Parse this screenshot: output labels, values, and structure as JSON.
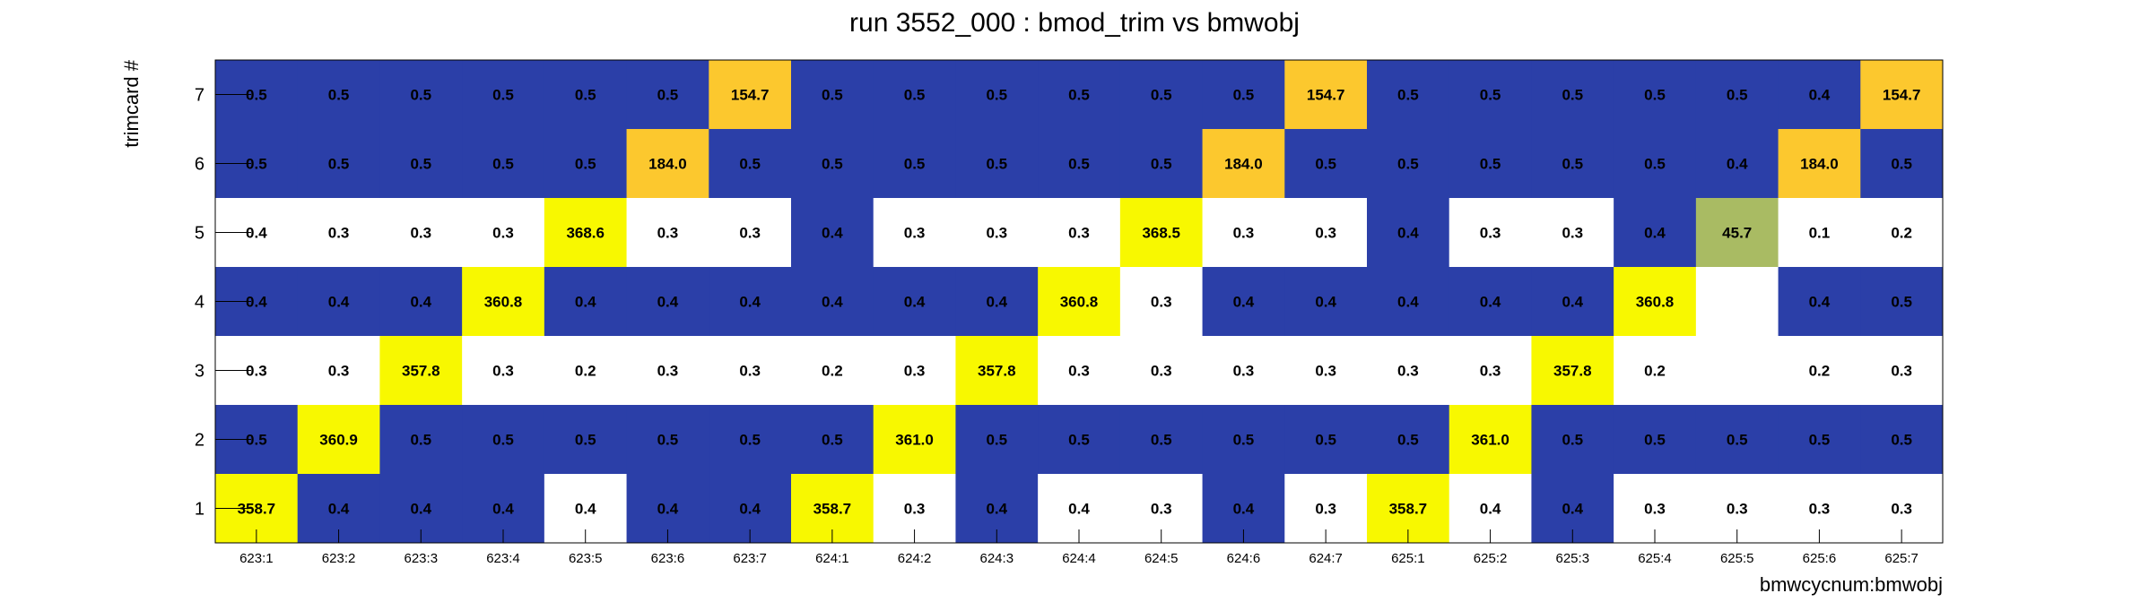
{
  "chart_data": {
    "type": "heatmap",
    "title": "run 3552_000 : bmod_trim vs bmwobj",
    "xlabel": "bmwcycnum:bmwobj",
    "ylabel": "trimcard #",
    "x_categories": [
      "623:1",
      "623:2",
      "623:3",
      "623:4",
      "623:5",
      "623:6",
      "623:7",
      "624:1",
      "624:2",
      "624:3",
      "624:4",
      "624:5",
      "624:6",
      "624:7",
      "625:1",
      "625:2",
      "625:3",
      "625:4",
      "625:5",
      "625:6",
      "625:7"
    ],
    "y_categories": [
      "1",
      "2",
      "3",
      "4",
      "5",
      "6",
      "7"
    ],
    "rows": [
      {
        "y": "7",
        "values": [
          0.5,
          0.5,
          0.5,
          0.5,
          0.5,
          0.5,
          154.7,
          0.5,
          0.5,
          0.5,
          0.5,
          0.5,
          0.5,
          154.7,
          0.5,
          0.5,
          0.5,
          0.5,
          0.5,
          0.4,
          154.7
        ],
        "labels": [
          "0.5",
          "0.5",
          "0.5",
          "0.5",
          "0.5",
          "0.5",
          "154.7",
          "0.5",
          "0.5",
          "0.5",
          "0.5",
          "0.5",
          "0.5",
          "154.7",
          "0.5",
          "0.5",
          "0.5",
          "0.5",
          "0.5",
          "0.4",
          "154.7"
        ]
      },
      {
        "y": "6",
        "values": [
          0.5,
          0.5,
          0.5,
          0.5,
          0.5,
          184.0,
          0.5,
          0.5,
          0.5,
          0.5,
          0.5,
          0.5,
          184.0,
          0.5,
          0.5,
          0.5,
          0.5,
          0.5,
          0.4,
          184.0,
          0.5
        ],
        "labels": [
          "0.5",
          "0.5",
          "0.5",
          "0.5",
          "0.5",
          "184.0",
          "0.5",
          "0.5",
          "0.5",
          "0.5",
          "0.5",
          "0.5",
          "184.0",
          "0.5",
          "0.5",
          "0.5",
          "0.5",
          "0.5",
          "0.4",
          "184.0",
          "0.5"
        ]
      },
      {
        "y": "5",
        "values": [
          0.4,
          0.3,
          0.3,
          0.3,
          368.6,
          0.3,
          0.3,
          0.4,
          0.3,
          0.3,
          0.3,
          368.5,
          0.3,
          0.3,
          0.4,
          0.3,
          0.3,
          0.4,
          45.7,
          0.1,
          0.2
        ],
        "labels": [
          "0.4",
          "0.3",
          "0.3",
          "0.3",
          "368.6",
          "0.3",
          "0.3",
          "0.4",
          "0.3",
          "0.3",
          "0.3",
          "368.5",
          "0.3",
          "0.3",
          "0.4",
          "0.3",
          "0.3",
          "0.4",
          "45.7",
          "0.1",
          "0.2"
        ]
      },
      {
        "y": "4",
        "values": [
          0.4,
          0.4,
          0.4,
          360.8,
          0.4,
          0.4,
          0.4,
          0.4,
          0.4,
          0.4,
          360.8,
          0.3,
          0.4,
          0.4,
          0.4,
          0.4,
          0.4,
          360.8,
          null,
          0.4,
          0.5
        ],
        "labels": [
          "0.4",
          "0.4",
          "0.4",
          "360.8",
          "0.4",
          "0.4",
          "0.4",
          "0.4",
          "0.4",
          "0.4",
          "360.8",
          "0.3",
          "0.4",
          "0.4",
          "0.4",
          "0.4",
          "0.4",
          "360.8",
          "",
          "0.4",
          "0.5"
        ]
      },
      {
        "y": "3",
        "values": [
          0.3,
          0.3,
          357.8,
          0.3,
          0.2,
          0.3,
          0.3,
          0.2,
          0.3,
          357.8,
          0.3,
          0.3,
          0.3,
          0.3,
          0.3,
          0.3,
          357.8,
          0.2,
          null,
          0.2,
          0.3
        ],
        "labels": [
          "0.3",
          "0.3",
          "357.8",
          "0.3",
          "0.2",
          "0.3",
          "0.3",
          "0.2",
          "0.3",
          "357.8",
          "0.3",
          "0.3",
          "0.3",
          "0.3",
          "0.3",
          "0.3",
          "357.8",
          "0.2",
          "",
          "0.2",
          "0.3"
        ]
      },
      {
        "y": "2",
        "values": [
          0.5,
          360.9,
          0.5,
          0.5,
          0.5,
          0.5,
          0.5,
          0.5,
          361.0,
          0.5,
          0.5,
          0.5,
          0.5,
          0.5,
          0.5,
          361.0,
          0.5,
          0.5,
          0.5,
          0.5,
          0.5
        ],
        "labels": [
          "0.5",
          "360.9",
          "0.5",
          "0.5",
          "0.5",
          "0.5",
          "0.5",
          "0.5",
          "361.0",
          "0.5",
          "0.5",
          "0.5",
          "0.5",
          "0.5",
          "0.5",
          "361.0",
          "0.5",
          "0.5",
          "0.5",
          "0.5",
          "0.5"
        ]
      },
      {
        "y": "1",
        "values": [
          358.7,
          0.4,
          0.4,
          0.4,
          0.4,
          0.4,
          0.4,
          358.7,
          0.3,
          0.4,
          0.4,
          0.3,
          0.4,
          0.3,
          358.7,
          0.4,
          0.4,
          0.3,
          0.3,
          0.3,
          0.3
        ],
        "labels": [
          "358.7",
          "0.4",
          "0.4",
          "0.4",
          "0.4",
          "0.4",
          "0.4",
          "358.7",
          "0.3",
          "0.4",
          "0.4",
          "0.3",
          "0.4",
          "0.3",
          "358.7",
          "0.4",
          "0.4",
          "0.3",
          "0.3",
          "0.3",
          "0.3"
        ]
      }
    ],
    "cell_fills": [
      [
        "blue",
        "blue",
        "blue",
        "blue",
        "blue",
        "blue",
        "orange",
        "blue",
        "blue",
        "blue",
        "blue",
        "blue",
        "blue",
        "orange",
        "blue",
        "blue",
        "blue",
        "blue",
        "blue",
        "blue",
        "orange"
      ],
      [
        "blue",
        "blue",
        "blue",
        "blue",
        "blue",
        "orange",
        "blue",
        "blue",
        "blue",
        "blue",
        "blue",
        "blue",
        "orange",
        "blue",
        "blue",
        "blue",
        "blue",
        "blue",
        "blue",
        "orange",
        "blue"
      ],
      [
        "white",
        "white",
        "white",
        "white",
        "yellow",
        "white",
        "white",
        "blue",
        "white",
        "white",
        "white",
        "yellow",
        "white",
        "white",
        "blue",
        "white",
        "white",
        "blue",
        "olive",
        "white",
        "white"
      ],
      [
        "blue",
        "blue",
        "blue",
        "yellow",
        "blue",
        "blue",
        "blue",
        "blue",
        "blue",
        "blue",
        "yellow",
        "white",
        "blue",
        "blue",
        "blue",
        "blue",
        "blue",
        "yellow",
        "white",
        "blue",
        "blue"
      ],
      [
        "white",
        "white",
        "yellow",
        "white",
        "white",
        "white",
        "white",
        "white",
        "white",
        "yellow",
        "white",
        "white",
        "white",
        "white",
        "white",
        "white",
        "yellow",
        "white",
        "white",
        "white",
        "white"
      ],
      [
        "blue",
        "yellow",
        "blue",
        "blue",
        "blue",
        "blue",
        "blue",
        "blue",
        "yellow",
        "blue",
        "blue",
        "blue",
        "blue",
        "blue",
        "blue",
        "yellow",
        "blue",
        "blue",
        "blue",
        "blue",
        "blue"
      ],
      [
        "yellow",
        "blue",
        "blue",
        "blue",
        "white",
        "blue",
        "blue",
        "yellow",
        "white",
        "blue",
        "white",
        "white",
        "blue",
        "white",
        "yellow",
        "white",
        "blue",
        "white",
        "white",
        "white",
        "white"
      ]
    ],
    "colors": {
      "blue": "#2b3fa8",
      "white": "#ffffff",
      "yellow": "#f8f800",
      "orange": "#fcc82e",
      "olive": "#a9bb63",
      "frame": "#000000"
    },
    "grid": false,
    "legend": "none"
  }
}
